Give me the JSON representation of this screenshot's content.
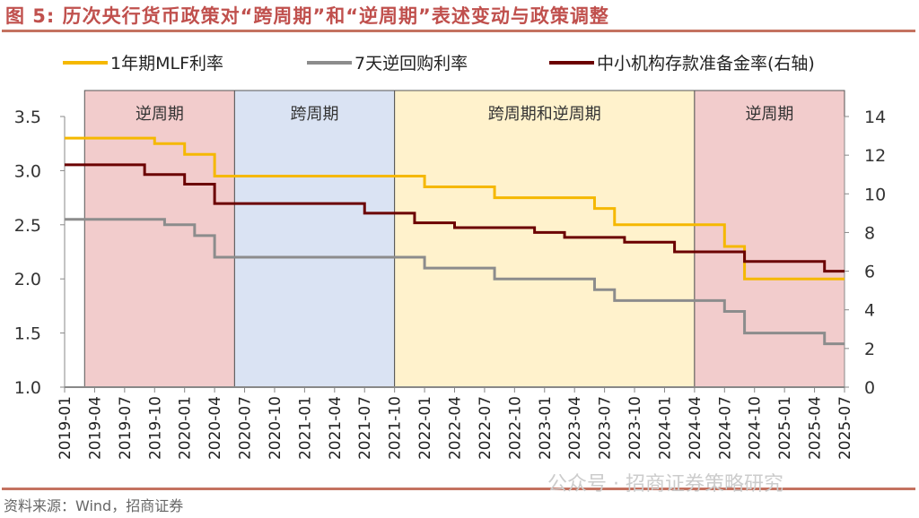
{
  "title": "图 5: 历次央行货币政策对“跨周期”和“逆周期”表述变动与政策调整",
  "source": "资料来源：Wind，招商证券",
  "watermark": "公众号 · 招商证券策略研究",
  "chart_data": {
    "type": "line",
    "x_range": [
      "2019-01",
      "2025-07"
    ],
    "x_ticks": [
      "2019-01",
      "2019-04",
      "2019-07",
      "2019-10",
      "2020-01",
      "2020-04",
      "2020-07",
      "2020-10",
      "2021-01",
      "2021-04",
      "2021-07",
      "2021-10",
      "2022-01",
      "2022-04",
      "2022-07",
      "2022-10",
      "2023-01",
      "2023-04",
      "2023-07",
      "2023-10",
      "2024-01",
      "2024-04",
      "2024-07",
      "2024-10",
      "2025-01",
      "2025-04",
      "2025-07"
    ],
    "y_left": {
      "range": [
        1.0,
        3.5
      ],
      "ticks": [
        "1.0",
        "1.5",
        "2.0",
        "2.5",
        "3.0",
        "3.5"
      ]
    },
    "y_right": {
      "range": [
        0,
        14
      ],
      "ticks": [
        "0",
        "2",
        "4",
        "6",
        "8",
        "10",
        "12",
        "14"
      ]
    },
    "legend_position": "top",
    "regions": [
      {
        "label": "逆周期",
        "from": "2019-03",
        "to": "2020-06",
        "color": "#f2cccc"
      },
      {
        "label": "跨周期",
        "from": "2020-06",
        "to": "2021-10",
        "color": "#dae3f3"
      },
      {
        "label": "跨周期和逆周期",
        "from": "2021-10",
        "to": "2024-04",
        "color": "#fff2cc"
      },
      {
        "label": "逆周期",
        "from": "2024-04",
        "to": "2025-07",
        "color": "#f2cccc"
      }
    ],
    "series": [
      {
        "name": "1年期MLF利率",
        "axis": "left",
        "color": "#f5b800",
        "steps": [
          [
            "2019-01",
            3.3
          ],
          [
            "2019-10",
            3.25
          ],
          [
            "2020-01",
            3.15
          ],
          [
            "2020-04",
            2.95
          ],
          [
            "2022-01",
            2.85
          ],
          [
            "2022-08",
            2.75
          ],
          [
            "2023-06",
            2.65
          ],
          [
            "2023-08",
            2.5
          ],
          [
            "2024-07",
            2.3
          ],
          [
            "2024-09",
            2.0
          ],
          [
            "2025-07",
            2.0
          ]
        ]
      },
      {
        "name": "7天逆回购利率",
        "axis": "left",
        "color": "#8c8c8c",
        "steps": [
          [
            "2019-01",
            2.55
          ],
          [
            "2019-11",
            2.5
          ],
          [
            "2020-02",
            2.4
          ],
          [
            "2020-04",
            2.2
          ],
          [
            "2022-01",
            2.1
          ],
          [
            "2022-08",
            2.0
          ],
          [
            "2023-06",
            1.9
          ],
          [
            "2023-08",
            1.8
          ],
          [
            "2024-07",
            1.7
          ],
          [
            "2024-09",
            1.5
          ],
          [
            "2025-05",
            1.4
          ],
          [
            "2025-07",
            1.4
          ]
        ]
      },
      {
        "name": "中小机构存款准备金率(右轴)",
        "axis": "right",
        "color": "#6b0000",
        "steps": [
          [
            "2019-01",
            11.5
          ],
          [
            "2019-09",
            11.0
          ],
          [
            "2020-01",
            10.5
          ],
          [
            "2020-04",
            9.5
          ],
          [
            "2021-07",
            9.0
          ],
          [
            "2021-12",
            8.5
          ],
          [
            "2022-04",
            8.25
          ],
          [
            "2022-12",
            8.0
          ],
          [
            "2023-03",
            7.75
          ],
          [
            "2023-09",
            7.5
          ],
          [
            "2024-02",
            7.0
          ],
          [
            "2024-09",
            6.5
          ],
          [
            "2025-05",
            6.0
          ],
          [
            "2025-07",
            6.0
          ]
        ]
      }
    ]
  }
}
